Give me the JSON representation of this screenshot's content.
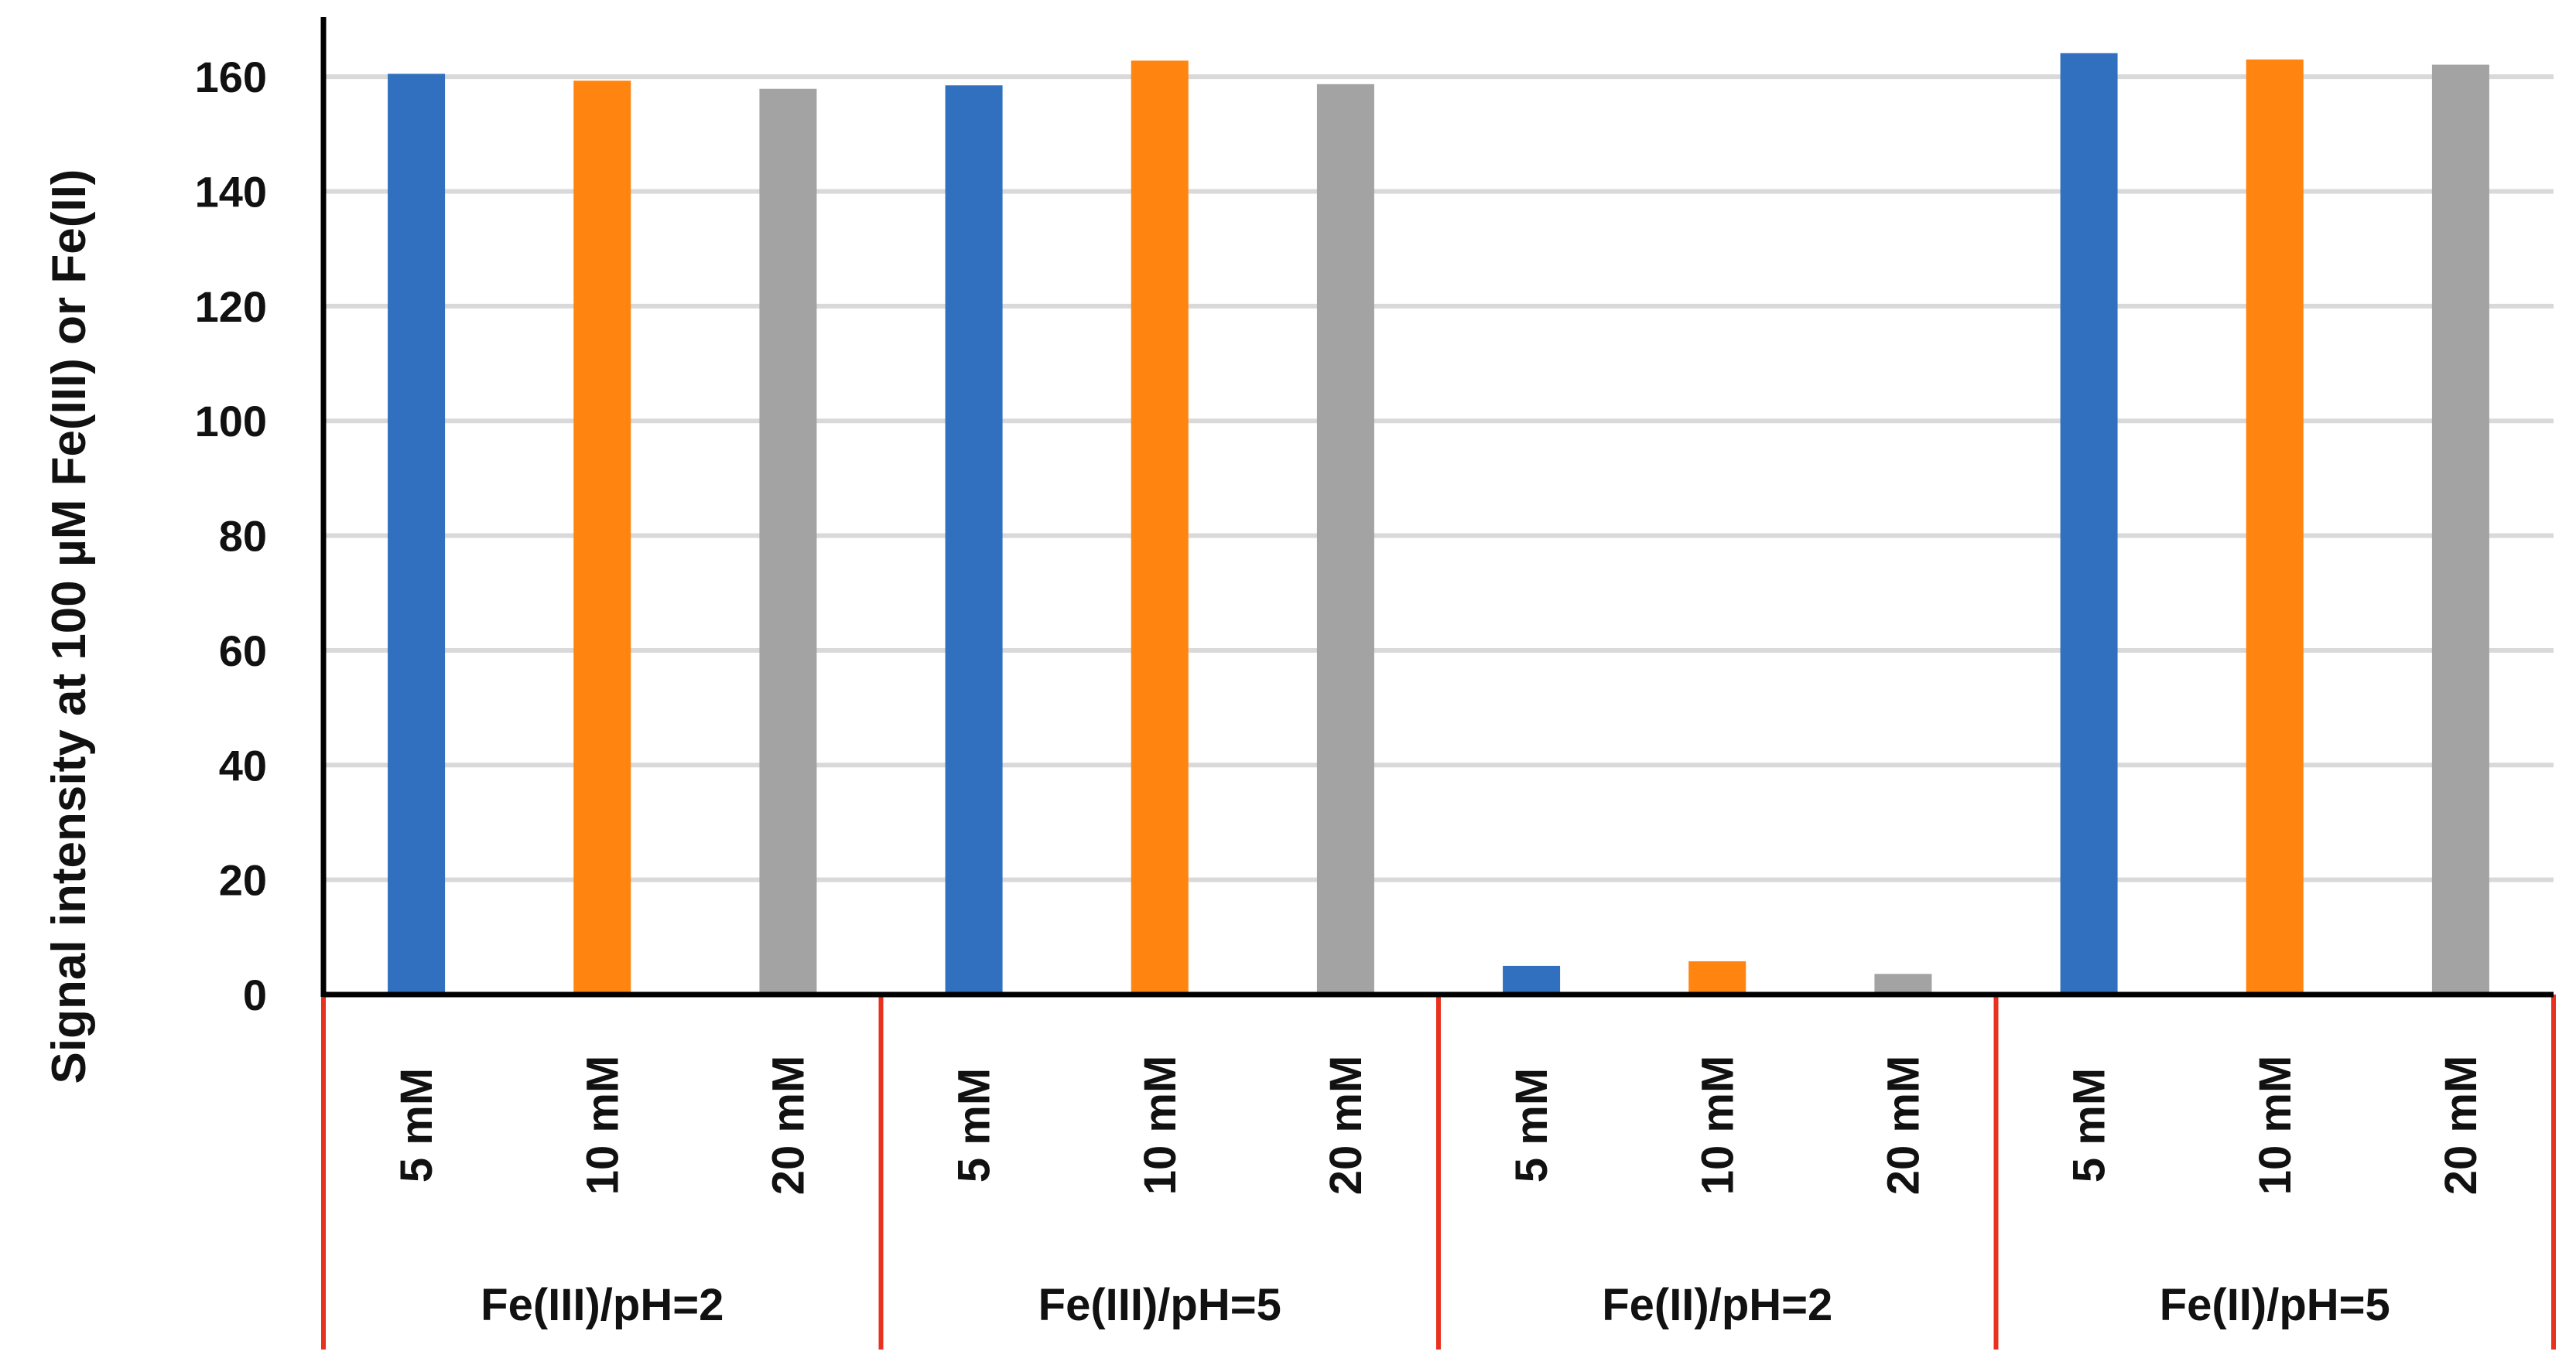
{
  "chart_data": {
    "type": "bar",
    "title": "",
    "xlabel": "",
    "ylabel": "Signal intensity at 100 µM Fe(III) or Fe(II)",
    "ylim": [
      0,
      170
    ],
    "yticks": [
      0,
      20,
      40,
      60,
      80,
      100,
      120,
      140,
      160
    ],
    "grid": true,
    "legend": "none",
    "groups": [
      {
        "label": "Fe(III)/pH=2",
        "bars": [
          {
            "category": "5 mM",
            "value": 160.5,
            "color": "#3070BE"
          },
          {
            "category": "10 mM",
            "value": 159.3,
            "color": "#FF8410"
          },
          {
            "category": "20 mM",
            "value": 157.9,
            "color": "#A3A3A3"
          }
        ]
      },
      {
        "label": "Fe(III)/pH=5",
        "bars": [
          {
            "category": "5 mM",
            "value": 158.5,
            "color": "#3070BE"
          },
          {
            "category": "10 mM",
            "value": 162.8,
            "color": "#FF8410"
          },
          {
            "category": "20 mM",
            "value": 158.7,
            "color": "#A3A3A3"
          }
        ]
      },
      {
        "label": "Fe(II)/pH=2",
        "bars": [
          {
            "category": "5 mM",
            "value": 5.0,
            "color": "#3070BE"
          },
          {
            "category": "10 mM",
            "value": 5.8,
            "color": "#FF8410"
          },
          {
            "category": "20 mM",
            "value": 3.6,
            "color": "#A3A3A3"
          }
        ]
      },
      {
        "label": "Fe(II)/pH=5",
        "bars": [
          {
            "category": "5 mM",
            "value": 164.1,
            "color": "#3070BE"
          },
          {
            "category": "10 mM",
            "value": 163.0,
            "color": "#FF8410"
          },
          {
            "category": "20 mM",
            "value": 162.1,
            "color": "#A3A3A3"
          }
        ]
      }
    ],
    "colors": {
      "gridline": "#D9D9D9",
      "axis": "#000000",
      "group_divider": "#E8321F"
    }
  }
}
